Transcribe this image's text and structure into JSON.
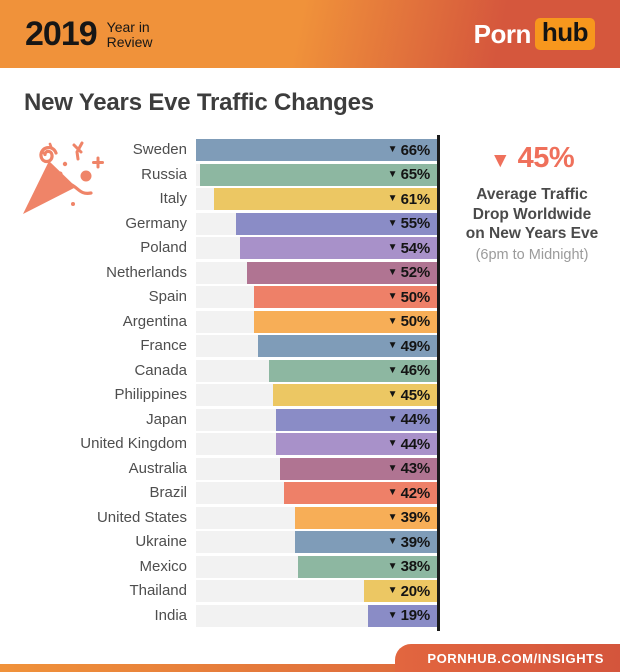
{
  "header": {
    "year": "2019",
    "tagline_line1": "Year in",
    "tagline_line2": "Review",
    "brand_word": "Porn",
    "brand_badge": "hub"
  },
  "title": "New Years Eve Traffic Changes",
  "annotation": {
    "glyph": "▼",
    "value": "45%",
    "lines": [
      "Average Traffic",
      "Drop Worldwide",
      "on New Years Eve"
    ],
    "note": "(6pm to Midnight)"
  },
  "footer": {
    "url": "PORNHUB.COM/INSIGHTS"
  },
  "colors": {
    "header_grad_left": "#f0923a",
    "header_grad_right": "#d5573d",
    "brand_badge_bg": "#f7971d",
    "accent_coral": "#ef705b",
    "popper_color": "#ef8468",
    "bar_track": "#f2f2f2",
    "axis_line": "#1a1a1a",
    "footer_grad_left": "#e2663f",
    "footer_grad_right": "#d4553c",
    "title_color": "#3d3d3d",
    "label_color": "#4e4e4e",
    "value_color": "#141414",
    "note_color": "#9b9b9b"
  },
  "chart_data": {
    "type": "bar",
    "orientation": "horizontal",
    "title": "New Years Eve Traffic Changes",
    "unit": "% traffic drop",
    "xlim": [
      0,
      66
    ],
    "drop_glyph": "▼",
    "value_suffix": "%",
    "categories": [
      "Sweden",
      "Russia",
      "Italy",
      "Germany",
      "Poland",
      "Netherlands",
      "Spain",
      "Argentina",
      "France",
      "Canada",
      "Philippines",
      "Japan",
      "United Kingdom",
      "Australia",
      "Brazil",
      "United States",
      "Ukraine",
      "Mexico",
      "Thailand",
      "India"
    ],
    "values": [
      66,
      65,
      61,
      55,
      54,
      52,
      50,
      50,
      49,
      46,
      45,
      44,
      44,
      43,
      42,
      39,
      39,
      38,
      20,
      19
    ],
    "palette": [
      "#7f9cb8",
      "#8db7a1",
      "#ecc763",
      "#8a8cc6",
      "#a891c9",
      "#b07492",
      "#ee8068",
      "#f7ae57"
    ],
    "legend": "none",
    "grid": "off"
  }
}
